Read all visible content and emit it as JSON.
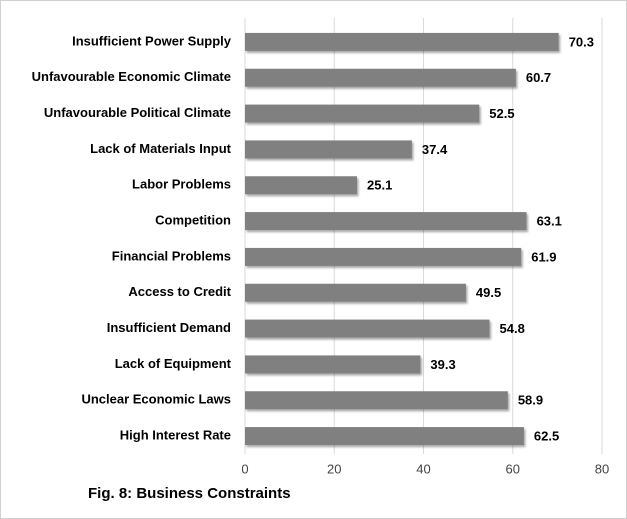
{
  "chart_data": {
    "type": "bar",
    "title": "Fig. 8: Business Constraints",
    "categories": [
      "Insufficient Power Supply",
      "Unfavourable Economic Climate",
      "Unfavourable Political Climate",
      "Lack of Materials Input",
      "Labor Problems",
      "Competition",
      "Financial Problems",
      "Access to Credit",
      "Insufficient Demand",
      "Lack of Equipment",
      "Unclear Economic Laws",
      "High Interest Rate"
    ],
    "values": [
      70.3,
      60.7,
      52.5,
      37.4,
      25.1,
      63.1,
      61.9,
      49.5,
      54.8,
      39.3,
      58.9,
      62.5
    ],
    "color": "#808080",
    "xlim": [
      0,
      80
    ],
    "xticks": [
      0,
      20,
      40,
      60,
      80
    ],
    "grid": true
  }
}
